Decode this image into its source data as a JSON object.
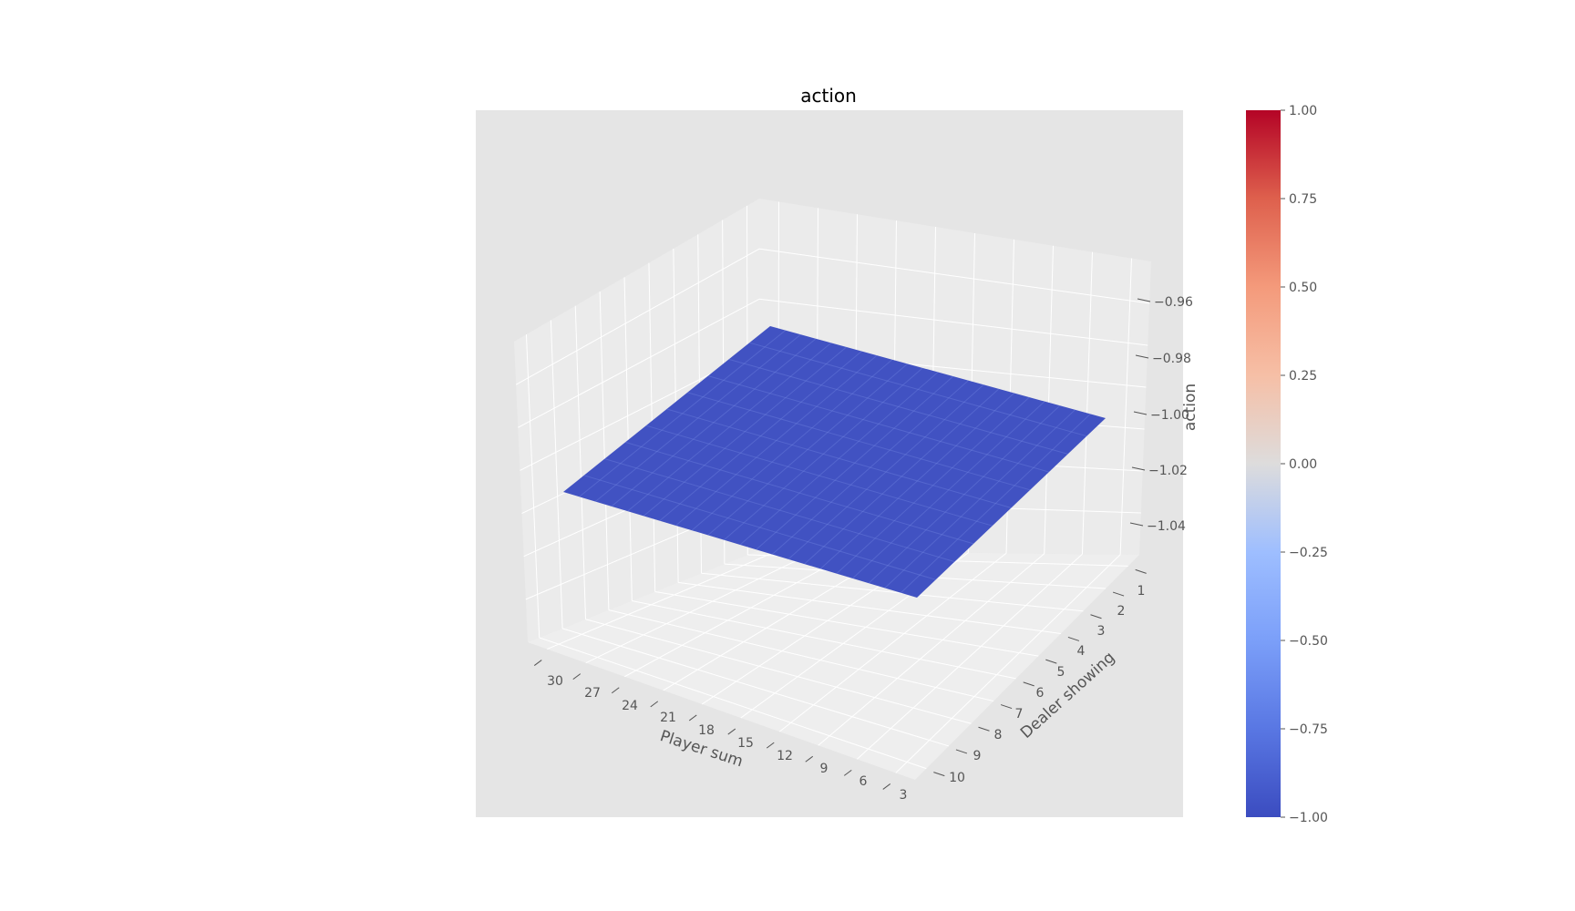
{
  "chart_data": {
    "type": "surface",
    "title": "action",
    "xlabel": "Player sum",
    "ylabel": "Dealer showing",
    "zlabel": "action",
    "x_ticks": [
      30,
      27,
      24,
      21,
      18,
      15,
      12,
      9,
      6,
      3
    ],
    "y_ticks": [
      1,
      2,
      3,
      4,
      5,
      6,
      7,
      8,
      9,
      10
    ],
    "z_ticks": [
      -0.96,
      -0.98,
      -1.0,
      -1.02,
      -1.04
    ],
    "z_value": -1.0,
    "x_range": [
      12,
      21
    ],
    "y_range": [
      1,
      10
    ],
    "surface_color": "#3b4cc0",
    "colormap": "coolwarm",
    "colorbar": {
      "range": [
        -1.0,
        1.0
      ],
      "ticks": [
        "1.00",
        "0.75",
        "0.50",
        "0.25",
        "0.00",
        "−0.25",
        "−0.50",
        "−0.75",
        "−1.00"
      ]
    },
    "grid": true
  },
  "tick_text": {
    "x": [
      "30",
      "27",
      "24",
      "21",
      "18",
      "15",
      "12",
      "9",
      "6",
      "3"
    ],
    "y": [
      "1",
      "2",
      "3",
      "4",
      "5",
      "6",
      "7",
      "8",
      "9",
      "10"
    ],
    "z": [
      "−0.96",
      "−0.98",
      "−1.00",
      "−1.02",
      "−1.04"
    ]
  }
}
